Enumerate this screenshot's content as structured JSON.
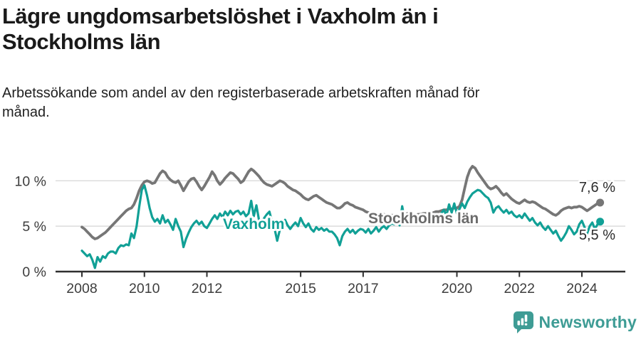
{
  "header": {
    "title_lines": [
      "Lägre ungdomsarbetslöshet i Vaxholm än i",
      "Stockholms län"
    ],
    "subtitle_lines": [
      "Arbetssökande som andel av den registerbaserade arbetskraften månad för",
      "månad."
    ]
  },
  "colors": {
    "gridline": "#dcdcdc",
    "axis": "#2f2f2f",
    "axis_text": "#3d3d3d",
    "title_text": "#1a1a1a",
    "vaxholm_teal": "#11a096",
    "stockholm_gray": "#767676",
    "stockholm_label_gray": "#6b6b6b"
  },
  "chart_data": {
    "type": "line",
    "title": "Lägre ungdomsarbetslöshet i Vaxholm än i Stockholms län",
    "subtitle": "Arbetssökande som andel av den registerbaserade arbetskraften månad för månad.",
    "unit": "%",
    "frequency": "monthly",
    "x_range": [
      "2008-01",
      "2024-08"
    ],
    "x_start_year": 2008,
    "x_axis": {
      "ticks": [
        2008,
        2010,
        2012,
        2015,
        2017,
        2020,
        2022,
        2024
      ],
      "tick_labels": [
        "2008",
        "2010",
        "2012",
        "2015",
        "2017",
        "2020",
        "2022",
        "2024"
      ]
    },
    "y_axis": {
      "values": [
        0,
        5,
        10
      ],
      "tick_labels": [
        "0 %",
        "5 %",
        "10 %"
      ],
      "grid_values": [
        5,
        10
      ],
      "ylim": [
        0,
        12.5
      ]
    },
    "legend_position": "inline-labels",
    "grid": "horizontal-only",
    "series": [
      {
        "name": "Stockholms län",
        "color": "#767676",
        "label_color": "#6b6b6b",
        "end_label": "7,6 %",
        "final_value": 7.6,
        "values": [
          4.9,
          4.7,
          4.4,
          4.1,
          3.8,
          3.6,
          3.7,
          3.9,
          4.1,
          4.3,
          4.6,
          4.9,
          5.2,
          5.5,
          5.8,
          6.1,
          6.4,
          6.7,
          6.9,
          7.0,
          7.4,
          8.1,
          8.9,
          9.5,
          9.9,
          10.0,
          9.9,
          9.7,
          9.8,
          10.3,
          10.8,
          11.1,
          10.9,
          10.4,
          10.1,
          9.9,
          9.8,
          10.0,
          9.5,
          8.9,
          9.4,
          9.9,
          10.2,
          10.3,
          9.9,
          9.4,
          9.0,
          9.4,
          9.9,
          10.4,
          11.0,
          10.6,
          10.0,
          9.6,
          9.9,
          10.3,
          10.6,
          10.9,
          10.8,
          10.5,
          10.2,
          9.8,
          10.0,
          10.5,
          11.0,
          11.3,
          11.1,
          10.8,
          10.5,
          10.1,
          9.8,
          9.6,
          9.5,
          9.4,
          9.6,
          9.8,
          10.0,
          9.9,
          9.7,
          9.4,
          9.2,
          9.0,
          8.9,
          8.7,
          8.5,
          8.2,
          8.0,
          7.9,
          8.1,
          8.3,
          8.4,
          8.2,
          8.0,
          7.8,
          7.6,
          7.5,
          7.4,
          7.2,
          7.0,
          7.0,
          7.2,
          7.5,
          7.6,
          7.4,
          7.3,
          7.1,
          7.0,
          6.9,
          6.8,
          6.6,
          6.5,
          6.4,
          6.3,
          6.3,
          6.2,
          6.2,
          6.3,
          6.2,
          6.2,
          6.2,
          6.2,
          6.3,
          6.2,
          6.2,
          6.3,
          6.4,
          6.3,
          6.3,
          6.2,
          6.3,
          6.3,
          6.4,
          6.4,
          6.5,
          6.4,
          6.5,
          6.6,
          6.6,
          6.7,
          6.8,
          6.8,
          6.9,
          6.9,
          7.0,
          7.0,
          7.2,
          7.9,
          9.2,
          10.4,
          11.2,
          11.6,
          11.4,
          10.9,
          10.5,
          10.1,
          9.7,
          9.3,
          9.1,
          9.2,
          9.4,
          9.1,
          8.7,
          8.4,
          8.6,
          8.3,
          8.0,
          7.8,
          7.6,
          7.5,
          7.7,
          7.9,
          7.7,
          7.6,
          7.7,
          7.6,
          7.4,
          7.2,
          7.0,
          6.9,
          6.7,
          6.5,
          6.3,
          6.2,
          6.4,
          6.7,
          6.9,
          7.0,
          7.1,
          7.0,
          7.1,
          7.1,
          7.2,
          7.1,
          6.9,
          6.7,
          6.9,
          7.1,
          7.3,
          7.5,
          7.6
        ]
      },
      {
        "name": "Vaxholm",
        "color": "#11a096",
        "label_color": "#11a096",
        "end_label": "5,5 %",
        "final_value": 5.5,
        "values": [
          2.3,
          2.0,
          1.7,
          1.9,
          1.3,
          0.4,
          1.6,
          1.1,
          1.7,
          1.5,
          2.0,
          2.2,
          2.2,
          2.0,
          2.6,
          2.9,
          2.8,
          3.0,
          2.9,
          4.2,
          3.7,
          5.0,
          7.1,
          9.0,
          9.5,
          8.4,
          7.0,
          6.0,
          5.5,
          5.8,
          5.3,
          6.2,
          5.4,
          5.7,
          5.2,
          4.6,
          5.8,
          5.0,
          4.4,
          2.7,
          3.6,
          4.3,
          4.9,
          5.3,
          5.6,
          5.2,
          5.5,
          5.0,
          4.8,
          5.3,
          5.8,
          6.2,
          5.8,
          6.4,
          6.0,
          6.6,
          6.2,
          6.7,
          6.3,
          6.6,
          6.7,
          6.3,
          6.6,
          6.1,
          6.4,
          7.8,
          6.1,
          7.3,
          5.7,
          5.3,
          5.9,
          6.3,
          6.6,
          5.5,
          4.7,
          3.4,
          4.6,
          5.3,
          5.7,
          5.1,
          4.7,
          5.1,
          5.4,
          5.0,
          5.9,
          5.3,
          4.9,
          5.3,
          4.7,
          4.4,
          4.9,
          4.6,
          4.8,
          4.5,
          4.7,
          4.4,
          4.4,
          4.1,
          3.7,
          2.9,
          3.9,
          4.4,
          4.7,
          4.3,
          4.6,
          4.2,
          4.5,
          4.7,
          4.6,
          4.3,
          4.7,
          4.2,
          4.5,
          4.9,
          4.4,
          4.8,
          5.0,
          4.7,
          5.1,
          5.3,
          5.2,
          5.5,
          5.1,
          7.2,
          5.6,
          5.3,
          5.7,
          5.4,
          5.8,
          5.5,
          5.9,
          5.6,
          5.8,
          6.1,
          5.7,
          6.0,
          6.3,
          5.9,
          6.4,
          6.8,
          6.2,
          7.4,
          6.5,
          7.5,
          6.4,
          6.9,
          7.5,
          7.0,
          7.7,
          8.2,
          8.6,
          8.8,
          9.0,
          8.9,
          8.6,
          8.3,
          8.1,
          7.6,
          6.5,
          7.0,
          7.2,
          6.8,
          6.5,
          6.8,
          6.4,
          6.6,
          6.2,
          6.0,
          6.2,
          5.9,
          6.4,
          6.0,
          5.6,
          5.9,
          5.4,
          5.1,
          5.4,
          4.9,
          4.6,
          5.0,
          4.6,
          4.2,
          4.5,
          3.9,
          3.4,
          3.8,
          4.3,
          5.0,
          4.6,
          4.1,
          4.4,
          5.2,
          5.6,
          4.9,
          4.2,
          5.0,
          5.4,
          4.7,
          5.2,
          5.5
        ]
      }
    ]
  },
  "footer": {
    "brand": "Newsworthy",
    "brand_color": "#3E9C95",
    "logo_icon": "speech-bubble-bar-chart-icon"
  }
}
